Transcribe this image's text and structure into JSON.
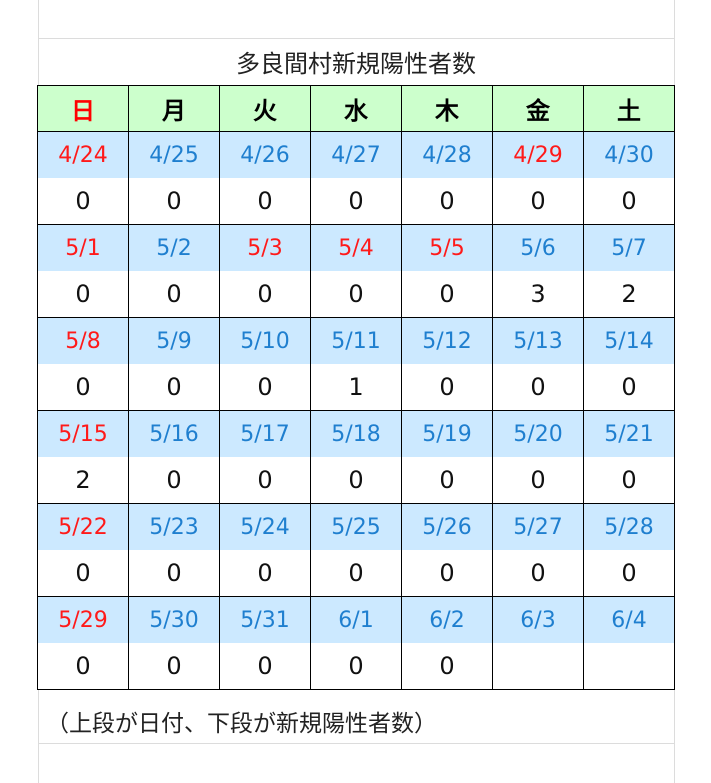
{
  "title": "多良間村新規陽性者数",
  "weekdays": [
    "日",
    "月",
    "火",
    "水",
    "木",
    "金",
    "土"
  ],
  "colors": {
    "header_bg": "#ccffcc",
    "date_bg": "#cce9ff",
    "date_text": "#1f7fcf",
    "holiday_text": "#ff0000"
  },
  "weeks": [
    {
      "dates": [
        "4/24",
        "4/25",
        "4/26",
        "4/27",
        "4/28",
        "4/29",
        "4/30"
      ],
      "red": [
        true,
        false,
        false,
        false,
        false,
        true,
        false
      ],
      "counts": [
        "0",
        "0",
        "0",
        "0",
        "0",
        "0",
        "0"
      ]
    },
    {
      "dates": [
        "5/1",
        "5/2",
        "5/3",
        "5/4",
        "5/5",
        "5/6",
        "5/7"
      ],
      "red": [
        true,
        false,
        true,
        true,
        true,
        false,
        false
      ],
      "counts": [
        "0",
        "0",
        "0",
        "0",
        "0",
        "3",
        "2"
      ]
    },
    {
      "dates": [
        "5/8",
        "5/9",
        "5/10",
        "5/11",
        "5/12",
        "5/13",
        "5/14"
      ],
      "red": [
        true,
        false,
        false,
        false,
        false,
        false,
        false
      ],
      "counts": [
        "0",
        "0",
        "0",
        "1",
        "0",
        "0",
        "0"
      ]
    },
    {
      "dates": [
        "5/15",
        "5/16",
        "5/17",
        "5/18",
        "5/19",
        "5/20",
        "5/21"
      ],
      "red": [
        true,
        false,
        false,
        false,
        false,
        false,
        false
      ],
      "counts": [
        "2",
        "0",
        "0",
        "0",
        "0",
        "0",
        "0"
      ]
    },
    {
      "dates": [
        "5/22",
        "5/23",
        "5/24",
        "5/25",
        "5/26",
        "5/27",
        "5/28"
      ],
      "red": [
        true,
        false,
        false,
        false,
        false,
        false,
        false
      ],
      "counts": [
        "0",
        "0",
        "0",
        "0",
        "0",
        "0",
        "0"
      ]
    },
    {
      "dates": [
        "5/29",
        "5/30",
        "5/31",
        "6/1",
        "6/2",
        "6/3",
        "6/4"
      ],
      "red": [
        true,
        false,
        false,
        false,
        false,
        false,
        false
      ],
      "counts": [
        "0",
        "0",
        "0",
        "0",
        "0",
        "",
        ""
      ]
    }
  ],
  "note": "（上段が日付、下段が新規陽性者数）"
}
